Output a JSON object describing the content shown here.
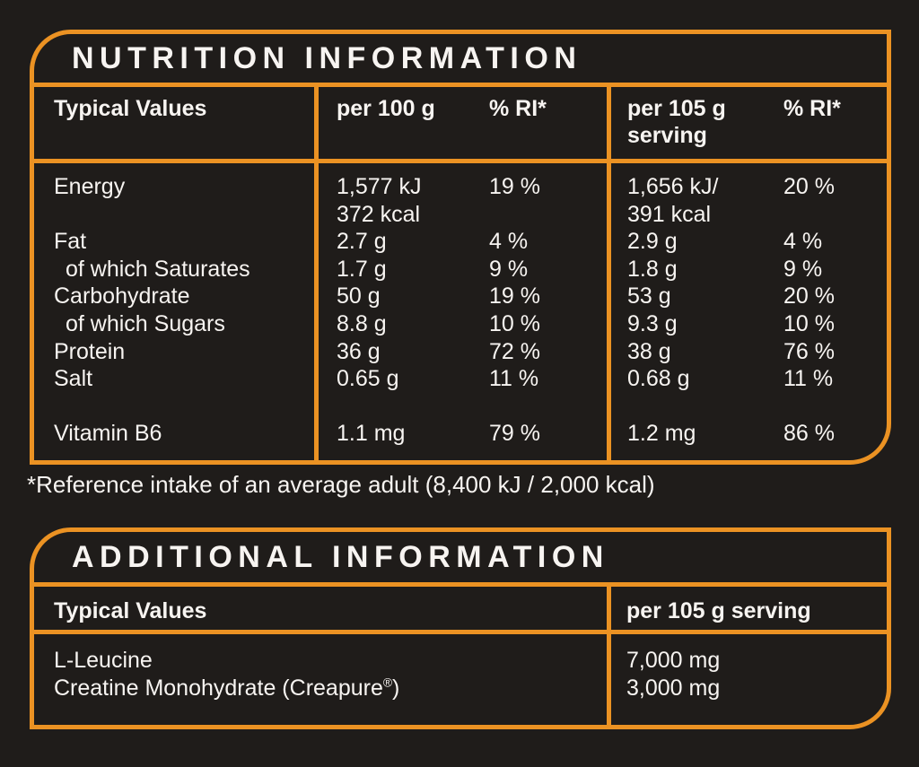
{
  "theme": {
    "background": "#1f1c1a",
    "accent_orange": "#eb9223",
    "text_white": "#f7f4f1"
  },
  "nutrition": {
    "title": "NUTRITION INFORMATION",
    "header": {
      "label": "Typical Values",
      "col_per100": "per 100 g",
      "col_ri_100": "% RI*",
      "col_per105": "per 105 g serving",
      "col_ri_105": "% RI*"
    },
    "rows": [
      {
        "label": "Energy",
        "indent": false,
        "per100": "1,577 kJ",
        "ri100": "19 %",
        "per105": "1,656 kJ/",
        "ri105": "20 %"
      },
      {
        "label": "",
        "indent": false,
        "per100": "372 kcal",
        "ri100": "",
        "per105": "391 kcal",
        "ri105": ""
      },
      {
        "label": "Fat",
        "indent": false,
        "per100": "2.7 g",
        "ri100": "4 %",
        "per105": "2.9 g",
        "ri105": "4 %"
      },
      {
        "label": "of which Saturates",
        "indent": true,
        "per100": "1.7 g",
        "ri100": "9 %",
        "per105": "1.8 g",
        "ri105": "9 %"
      },
      {
        "label": "Carbohydrate",
        "indent": false,
        "per100": "50 g",
        "ri100": "19 %",
        "per105": "53 g",
        "ri105": "20 %"
      },
      {
        "label": "of which Sugars",
        "indent": true,
        "per100": "8.8 g",
        "ri100": "10 %",
        "per105": "9.3 g",
        "ri105": "10 %"
      },
      {
        "label": "Protein",
        "indent": false,
        "per100": "36 g",
        "ri100": "72 %",
        "per105": "38 g",
        "ri105": "76 %"
      },
      {
        "label": "Salt",
        "indent": false,
        "per100": "0.65 g",
        "ri100": "11 %",
        "per105": "0.68 g",
        "ri105": "11 %"
      },
      {
        "spacer": true
      },
      {
        "label": "Vitamin B6",
        "indent": false,
        "per100": "1.1 mg",
        "ri100": "79 %",
        "per105": "1.2 mg",
        "ri105": "86 %"
      }
    ],
    "footnote": "*Reference intake of an average adult (8,400 kJ / 2,000 kcal)"
  },
  "additional": {
    "title": "ADDITIONAL INFORMATION",
    "header": {
      "label": "Typical Values",
      "col_per105": "per 105 g serving"
    },
    "rows": [
      {
        "label": "L-Leucine",
        "value": "7,000 mg"
      },
      {
        "label": "Creatine Monohydrate (Creapure®)",
        "value": "3,000 mg"
      }
    ]
  }
}
